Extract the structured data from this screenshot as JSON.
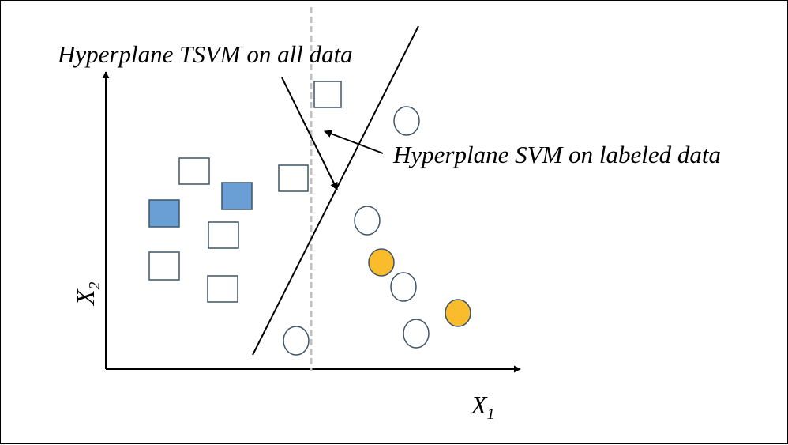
{
  "labels": {
    "tsvm": "Hyperplane TSVM on all data",
    "svm": "Hyperplane SVM on labeled data",
    "x1_base": "X",
    "x1_sub": "1",
    "x2_base": "X",
    "x2_sub": "2"
  },
  "colors": {
    "outline": "#3d5466",
    "labeled_square": "#6a9fd6",
    "labeled_circle": "#f8bc2c",
    "svm_line": "#c0c0c0",
    "axis": "#000000"
  }
}
